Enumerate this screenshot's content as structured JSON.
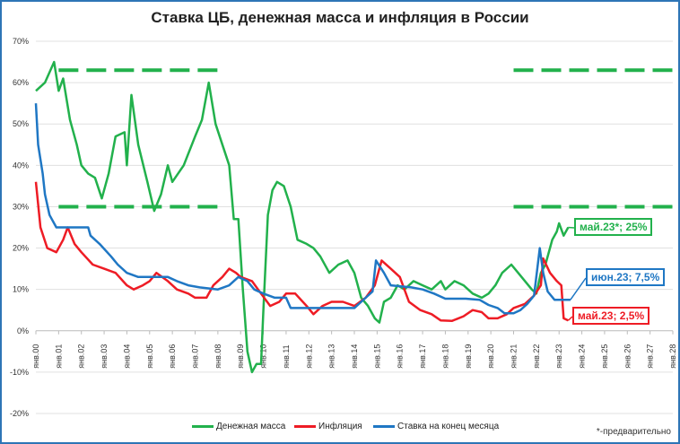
{
  "chart_data": {
    "type": "line",
    "title": "Ставка ЦБ, денежная масса и инфляция в России",
    "ylim": [
      -20,
      70
    ],
    "yticks": [
      "-20%",
      "-10%",
      "0%",
      "10%",
      "20%",
      "30%",
      "40%",
      "50%",
      "60%",
      "70%"
    ],
    "xlim": [
      2000,
      2028
    ],
    "xticks": [
      "янв.00",
      "янв.01",
      "янв.02",
      "янв.03",
      "янв.04",
      "янв.05",
      "янв.06",
      "янв.07",
      "янв.08",
      "янв.09",
      "янв.10",
      "янв.11",
      "янв.12",
      "янв.13",
      "янв.14",
      "янв.15",
      "янв.16",
      "янв.17",
      "янв.18",
      "янв.19",
      "янв.20",
      "янв.21",
      "янв.22",
      "янв.23",
      "янв.24",
      "янв.25",
      "янв.26",
      "янв.27",
      "янв.28"
    ],
    "grid": true,
    "legend": "bottom",
    "series": [
      {
        "name": "Денежная масса",
        "color": "#22b14c",
        "points": [
          [
            2000,
            58
          ],
          [
            2000.4,
            60
          ],
          [
            2000.8,
            65
          ],
          [
            2001,
            58
          ],
          [
            2001.2,
            61
          ],
          [
            2001.5,
            51
          ],
          [
            2001.8,
            45
          ],
          [
            2002,
            40
          ],
          [
            2002.3,
            38
          ],
          [
            2002.6,
            37
          ],
          [
            2002.9,
            32
          ],
          [
            2003.2,
            38
          ],
          [
            2003.5,
            47
          ],
          [
            2003.9,
            48
          ],
          [
            2004,
            40
          ],
          [
            2004.2,
            57
          ],
          [
            2004.5,
            45
          ],
          [
            2004.9,
            36
          ],
          [
            2005.2,
            29
          ],
          [
            2005.5,
            33
          ],
          [
            2005.8,
            40
          ],
          [
            2006,
            36
          ],
          [
            2006.5,
            40
          ],
          [
            2007,
            47
          ],
          [
            2007.3,
            51
          ],
          [
            2007.6,
            60
          ],
          [
            2007.9,
            50
          ],
          [
            2008.2,
            45
          ],
          [
            2008.5,
            40
          ],
          [
            2008.7,
            27
          ],
          [
            2008.9,
            27
          ],
          [
            2009.1,
            10
          ],
          [
            2009.3,
            -5
          ],
          [
            2009.5,
            -10
          ],
          [
            2009.7,
            -8
          ],
          [
            2009.9,
            -8
          ],
          [
            2010,
            5
          ],
          [
            2010.2,
            28
          ],
          [
            2010.4,
            34
          ],
          [
            2010.6,
            36
          ],
          [
            2010.9,
            35
          ],
          [
            2011.2,
            30
          ],
          [
            2011.5,
            22
          ],
          [
            2011.9,
            21
          ],
          [
            2012.2,
            20
          ],
          [
            2012.5,
            18
          ],
          [
            2012.9,
            14
          ],
          [
            2013.3,
            16
          ],
          [
            2013.7,
            17
          ],
          [
            2014,
            14
          ],
          [
            2014.3,
            8
          ],
          [
            2014.6,
            6
          ],
          [
            2014.9,
            3
          ],
          [
            2015.1,
            2
          ],
          [
            2015.3,
            7
          ],
          [
            2015.6,
            8
          ],
          [
            2015.9,
            11
          ],
          [
            2016.2,
            10
          ],
          [
            2016.6,
            12
          ],
          [
            2017,
            11
          ],
          [
            2017.4,
            10
          ],
          [
            2017.8,
            12
          ],
          [
            2018,
            10
          ],
          [
            2018.4,
            12
          ],
          [
            2018.8,
            11
          ],
          [
            2019.2,
            9
          ],
          [
            2019.6,
            8
          ],
          [
            2019.9,
            9
          ],
          [
            2020.2,
            11
          ],
          [
            2020.5,
            14
          ],
          [
            2020.9,
            16
          ],
          [
            2021.2,
            14
          ],
          [
            2021.5,
            12
          ],
          [
            2021.8,
            10
          ],
          [
            2022,
            9
          ],
          [
            2022.2,
            14
          ],
          [
            2022.4,
            16
          ],
          [
            2022.7,
            22
          ],
          [
            2022.9,
            24
          ],
          [
            2023,
            26
          ],
          [
            2023.2,
            23
          ],
          [
            2023.4,
            25
          ]
        ]
      },
      {
        "name": "Инфляция",
        "color": "#ee1c25",
        "points": [
          [
            2000,
            36
          ],
          [
            2000.2,
            25
          ],
          [
            2000.5,
            20
          ],
          [
            2000.9,
            19
          ],
          [
            2001.2,
            22
          ],
          [
            2001.4,
            25
          ],
          [
            2001.7,
            21
          ],
          [
            2002,
            19
          ],
          [
            2002.5,
            16
          ],
          [
            2003,
            15
          ],
          [
            2003.5,
            14
          ],
          [
            2004,
            11
          ],
          [
            2004.3,
            10
          ],
          [
            2004.7,
            11
          ],
          [
            2005,
            12
          ],
          [
            2005.3,
            14
          ],
          [
            2005.8,
            12
          ],
          [
            2006.2,
            10
          ],
          [
            2006.7,
            9
          ],
          [
            2007,
            8
          ],
          [
            2007.5,
            8
          ],
          [
            2007.8,
            11
          ],
          [
            2008.2,
            13
          ],
          [
            2008.5,
            15
          ],
          [
            2008.8,
            14
          ],
          [
            2009,
            13
          ],
          [
            2009.5,
            12
          ],
          [
            2009.9,
            9
          ],
          [
            2010.3,
            6
          ],
          [
            2010.7,
            7
          ],
          [
            2011,
            9
          ],
          [
            2011.4,
            9
          ],
          [
            2011.9,
            6
          ],
          [
            2012.2,
            4
          ],
          [
            2012.6,
            6
          ],
          [
            2013,
            7
          ],
          [
            2013.5,
            7
          ],
          [
            2014,
            6
          ],
          [
            2014.5,
            8
          ],
          [
            2014.9,
            11
          ],
          [
            2015.2,
            17
          ],
          [
            2015.6,
            15
          ],
          [
            2016,
            13
          ],
          [
            2016.4,
            7
          ],
          [
            2016.9,
            5
          ],
          [
            2017.4,
            4
          ],
          [
            2017.8,
            2.5
          ],
          [
            2018.3,
            2.4
          ],
          [
            2018.8,
            3.5
          ],
          [
            2019.2,
            5
          ],
          [
            2019.6,
            4.5
          ],
          [
            2019.9,
            3
          ],
          [
            2020.3,
            3
          ],
          [
            2020.7,
            4
          ],
          [
            2021,
            5.5
          ],
          [
            2021.5,
            6.5
          ],
          [
            2021.9,
            8.5
          ],
          [
            2022.2,
            11
          ],
          [
            2022.3,
            17.5
          ],
          [
            2022.6,
            14
          ],
          [
            2022.9,
            12
          ],
          [
            2023.1,
            11
          ],
          [
            2023.2,
            3
          ],
          [
            2023.4,
            2.5
          ]
        ]
      },
      {
        "name": "Ставка на конец месяца",
        "color": "#1f77c4",
        "points": [
          [
            2000,
            55
          ],
          [
            2000.1,
            45
          ],
          [
            2000.3,
            38
          ],
          [
            2000.4,
            33
          ],
          [
            2000.6,
            28
          ],
          [
            2000.9,
            25
          ],
          [
            2002.3,
            25
          ],
          [
            2002.4,
            23
          ],
          [
            2002.8,
            21
          ],
          [
            2003.3,
            18
          ],
          [
            2003.6,
            16
          ],
          [
            2004,
            14
          ],
          [
            2004.5,
            13
          ],
          [
            2005.8,
            13
          ],
          [
            2006.2,
            12
          ],
          [
            2006.7,
            11
          ],
          [
            2007.2,
            10.5
          ],
          [
            2008,
            10
          ],
          [
            2008.5,
            11
          ],
          [
            2008.9,
            13
          ],
          [
            2009.3,
            12
          ],
          [
            2009.6,
            10
          ],
          [
            2010,
            9
          ],
          [
            2010.5,
            8
          ],
          [
            2011,
            8
          ],
          [
            2011.2,
            5.5
          ],
          [
            2014,
            5.5
          ],
          [
            2014.3,
            7
          ],
          [
            2014.8,
            9.5
          ],
          [
            2014.95,
            17
          ],
          [
            2015.3,
            14
          ],
          [
            2015.6,
            11
          ],
          [
            2016.5,
            10.5
          ],
          [
            2017,
            10
          ],
          [
            2017.5,
            9
          ],
          [
            2018,
            7.75
          ],
          [
            2018.9,
            7.75
          ],
          [
            2019.5,
            7.5
          ],
          [
            2019.9,
            6.25
          ],
          [
            2020.3,
            5.5
          ],
          [
            2020.6,
            4.25
          ],
          [
            2021,
            4.25
          ],
          [
            2021.3,
            5
          ],
          [
            2021.6,
            6.5
          ],
          [
            2021.9,
            8.5
          ],
          [
            2022.15,
            20
          ],
          [
            2022.3,
            14
          ],
          [
            2022.5,
            9.5
          ],
          [
            2022.8,
            7.5
          ],
          [
            2023.5,
            7.5
          ]
        ]
      }
    ],
    "reference_lines": [
      {
        "color": "#22b14c",
        "value": 63,
        "ranges": [
          [
            2001,
            2008
          ],
          [
            2021,
            2028
          ]
        ]
      },
      {
        "color": "#22b14c",
        "value": 30,
        "ranges": [
          [
            2001,
            2008
          ],
          [
            2021,
            2028
          ]
        ]
      }
    ],
    "annotations": [
      {
        "text": "май.23*; 25%",
        "color": "#22b14c",
        "x": 2023.4,
        "y": 25
      },
      {
        "text": "июн.23; 7,5%",
        "color": "#1f77c4",
        "x": 2023.5,
        "y": 7.5
      },
      {
        "text": "май.23; 2,5%",
        "color": "#ee1c25",
        "x": 2023.4,
        "y": 2.5
      }
    ],
    "footnote": "*-предварительно"
  }
}
